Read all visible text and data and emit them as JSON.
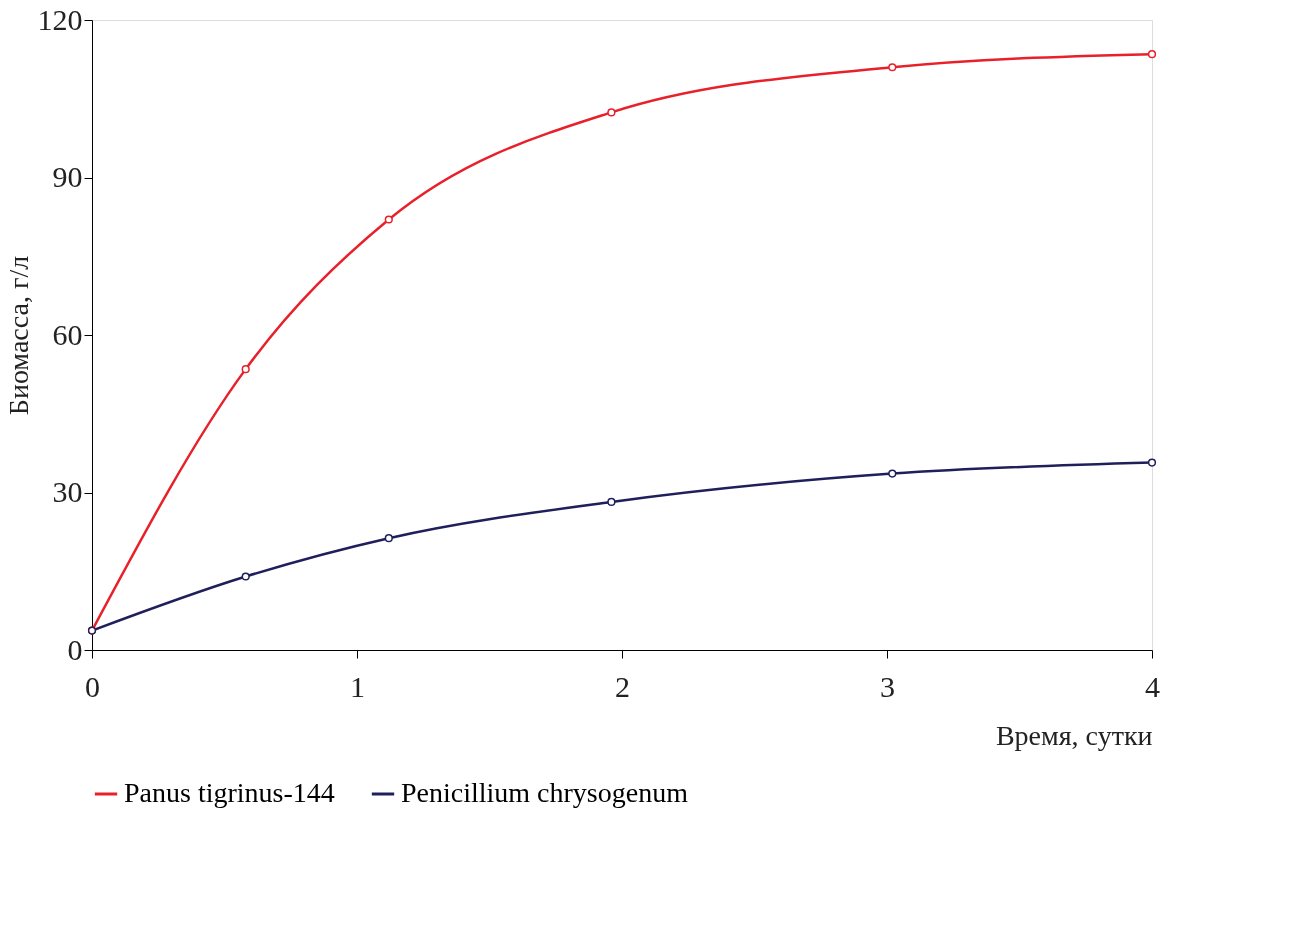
{
  "chart_data": {
    "type": "line",
    "xlabel": "Время, сутки",
    "ylabel": "Биомасса, г/л",
    "xlim": [
      0,
      4
    ],
    "xticks": [
      0,
      1,
      2,
      3,
      4
    ],
    "ylim": [
      0,
      120
    ],
    "yticks": [
      0,
      30,
      60,
      90,
      120
    ],
    "grid": false,
    "legend": "bottom",
    "marker": "circle",
    "line_style": "solid",
    "series": [
      {
        "name": "Panus tigrinus-144",
        "color": "#e8202a",
        "x": [
          0,
          0.58,
          1.12,
          1.96,
          3.02,
          4
        ],
        "values": [
          3.7,
          53.5,
          82,
          102.4,
          111,
          113.5
        ]
      },
      {
        "name": "Penicillium chrysogenum",
        "color": "#1f1f5c",
        "x": [
          0,
          0.58,
          1.12,
          1.96,
          3.02,
          4
        ],
        "values": [
          3.7,
          14,
          21.3,
          28.2,
          33.6,
          35.7
        ]
      }
    ]
  }
}
